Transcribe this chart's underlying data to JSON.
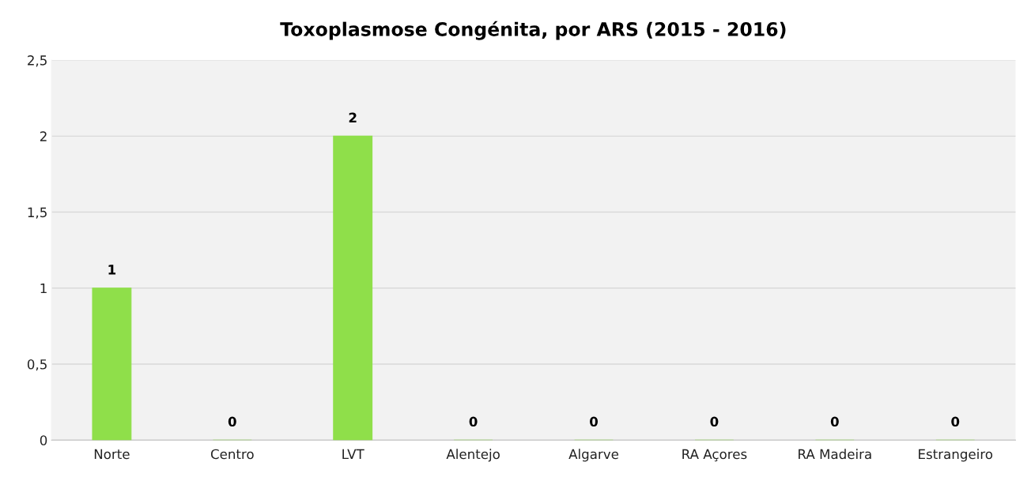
{
  "chart_data": {
    "type": "bar",
    "title": "Toxoplasmose Congénita, por ARS (2015 - 2016)",
    "categories": [
      "Norte",
      "Centro",
      "LVT",
      "Alentejo",
      "Algarve",
      "RA Açores",
      "RA Madeira",
      "Estrangeiro"
    ],
    "values": [
      1,
      0,
      2,
      0,
      0,
      0,
      0,
      0
    ],
    "color": "#8fdf4a",
    "ylim": [
      0,
      2.5
    ],
    "yticks": [
      0,
      {
        "value": 0.5,
        "label": "0,5"
      },
      1,
      {
        "value": 1.5,
        "label": "1,5"
      },
      2,
      {
        "value": 2.5,
        "label": "2,5"
      }
    ],
    "grid": "y",
    "data_labels": true
  }
}
